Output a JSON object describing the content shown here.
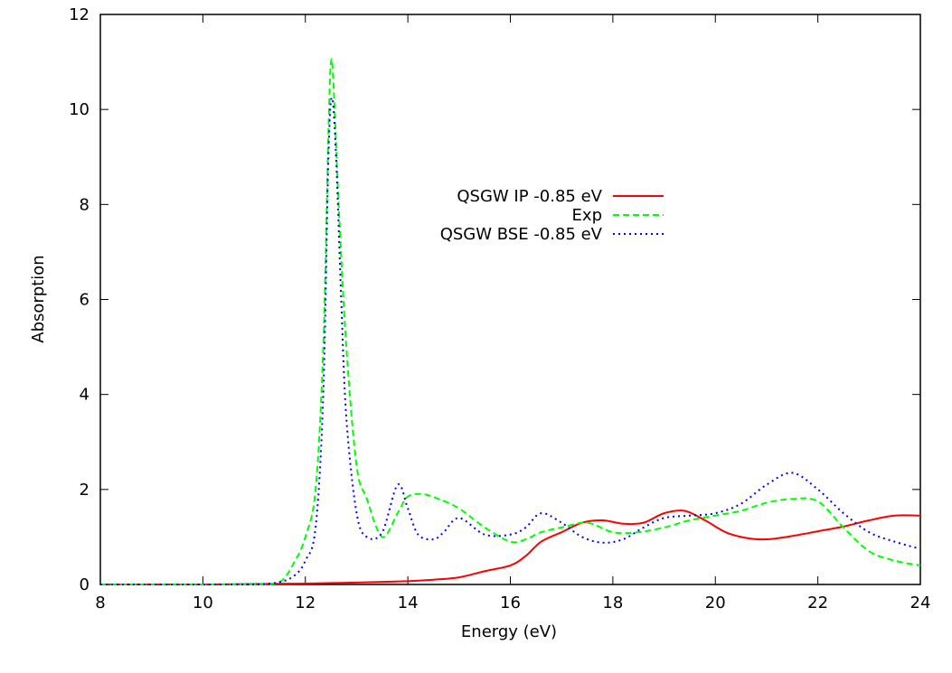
{
  "chart_data": {
    "type": "line",
    "xlabel": "Energy (eV)",
    "ylabel": "Absorption",
    "xlim": [
      8,
      24
    ],
    "ylim": [
      0,
      12
    ],
    "xticks": [
      8,
      10,
      12,
      14,
      16,
      18,
      20,
      22,
      24
    ],
    "yticks": [
      0,
      2,
      4,
      6,
      8,
      10,
      12
    ],
    "grid": false,
    "legend_position": "center",
    "series": [
      {
        "name": "QSGW IP -0.85 eV",
        "color": "#ff0000",
        "style": "solid",
        "x": [
          8,
          10,
          11,
          12,
          12.5,
          13,
          14,
          14.5,
          15,
          15.5,
          16,
          16.3,
          16.6,
          17,
          17.4,
          17.8,
          18.2,
          18.6,
          19,
          19.4,
          19.8,
          20.2,
          20.6,
          21,
          21.5,
          22,
          22.5,
          23,
          23.5,
          24
        ],
        "y": [
          0.0,
          0.0,
          0.01,
          0.02,
          0.03,
          0.04,
          0.07,
          0.1,
          0.15,
          0.28,
          0.4,
          0.6,
          0.9,
          1.1,
          1.3,
          1.35,
          1.28,
          1.3,
          1.5,
          1.55,
          1.35,
          1.1,
          0.98,
          0.95,
          1.02,
          1.12,
          1.22,
          1.35,
          1.45,
          1.45
        ]
      },
      {
        "name": "Exp",
        "color": "#00ff00",
        "style": "dashed",
        "x": [
          8,
          10,
          11,
          11.5,
          11.8,
          12,
          12.2,
          12.35,
          12.45,
          12.5,
          12.55,
          12.65,
          12.8,
          13,
          13.2,
          13.5,
          13.8,
          14,
          14.3,
          14.6,
          15,
          15.5,
          16,
          16.3,
          16.6,
          17,
          17.5,
          18,
          18.5,
          19,
          19.5,
          20,
          20.5,
          21,
          21.5,
          22,
          22.5,
          23,
          23.5,
          24
        ],
        "y": [
          0,
          0,
          0,
          0.05,
          0.5,
          1.0,
          2.0,
          5.0,
          9.5,
          11.0,
          10.5,
          8.0,
          5.0,
          2.5,
          1.8,
          1.0,
          1.5,
          1.85,
          1.9,
          1.8,
          1.6,
          1.2,
          0.9,
          0.95,
          1.1,
          1.2,
          1.3,
          1.1,
          1.1,
          1.2,
          1.35,
          1.45,
          1.55,
          1.72,
          1.8,
          1.75,
          1.2,
          0.7,
          0.5,
          0.4
        ]
      },
      {
        "name": "QSGW BSE -0.85 eV",
        "color": "#0000ff",
        "style": "dotted",
        "x": [
          8,
          10,
          11,
          11.5,
          11.8,
          12,
          12.2,
          12.35,
          12.45,
          12.52,
          12.6,
          12.7,
          12.8,
          13,
          13.2,
          13.5,
          13.8,
          14,
          14.2,
          14.5,
          14.7,
          15,
          15.5,
          16,
          16.3,
          16.6,
          17,
          17.4,
          17.8,
          18.2,
          18.6,
          19,
          19.5,
          20,
          20.5,
          21,
          21.5,
          22,
          22.5,
          23,
          23.5,
          24
        ],
        "y": [
          0,
          0,
          0,
          0.05,
          0.2,
          0.5,
          1.2,
          4.0,
          9.0,
          10.25,
          9.0,
          6.0,
          3.5,
          1.5,
          1.0,
          1.1,
          2.1,
          1.6,
          1.05,
          0.95,
          1.1,
          1.4,
          1.05,
          1.05,
          1.2,
          1.5,
          1.3,
          1.0,
          0.88,
          0.95,
          1.2,
          1.4,
          1.45,
          1.5,
          1.7,
          2.1,
          2.35,
          2.0,
          1.5,
          1.1,
          0.9,
          0.75
        ]
      }
    ]
  }
}
